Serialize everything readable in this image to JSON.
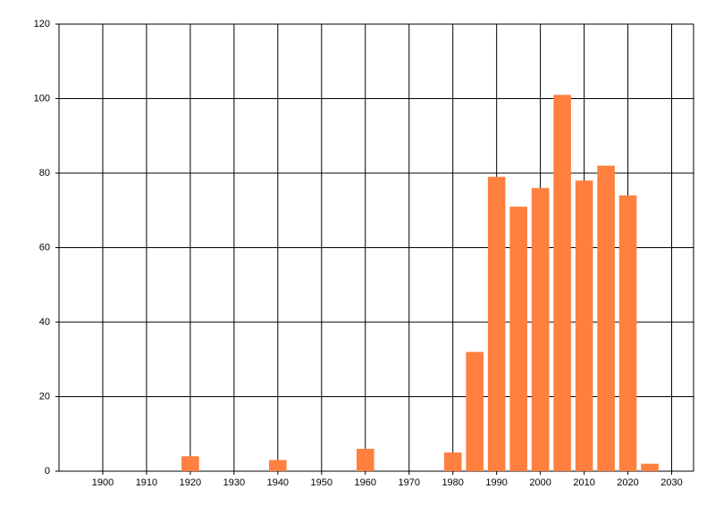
{
  "chart_data": {
    "type": "bar",
    "x": [
      1920,
      1940,
      1960,
      1980,
      1985,
      1990,
      1995,
      2000,
      2005,
      2010,
      2015,
      2020,
      2025
    ],
    "values": [
      4,
      3,
      6,
      5,
      32,
      79,
      71,
      76,
      101,
      78,
      82,
      74,
      2
    ],
    "color": "#ff7f3f",
    "xlim": [
      1890,
      2035
    ],
    "xticks": [
      1900,
      1910,
      1920,
      1930,
      1940,
      1950,
      1960,
      1970,
      1980,
      1990,
      2000,
      2010,
      2020,
      2030
    ],
    "ylim": [
      0,
      120
    ],
    "yticks": [
      0,
      20,
      40,
      60,
      80,
      100,
      120
    ],
    "grid": true
  }
}
